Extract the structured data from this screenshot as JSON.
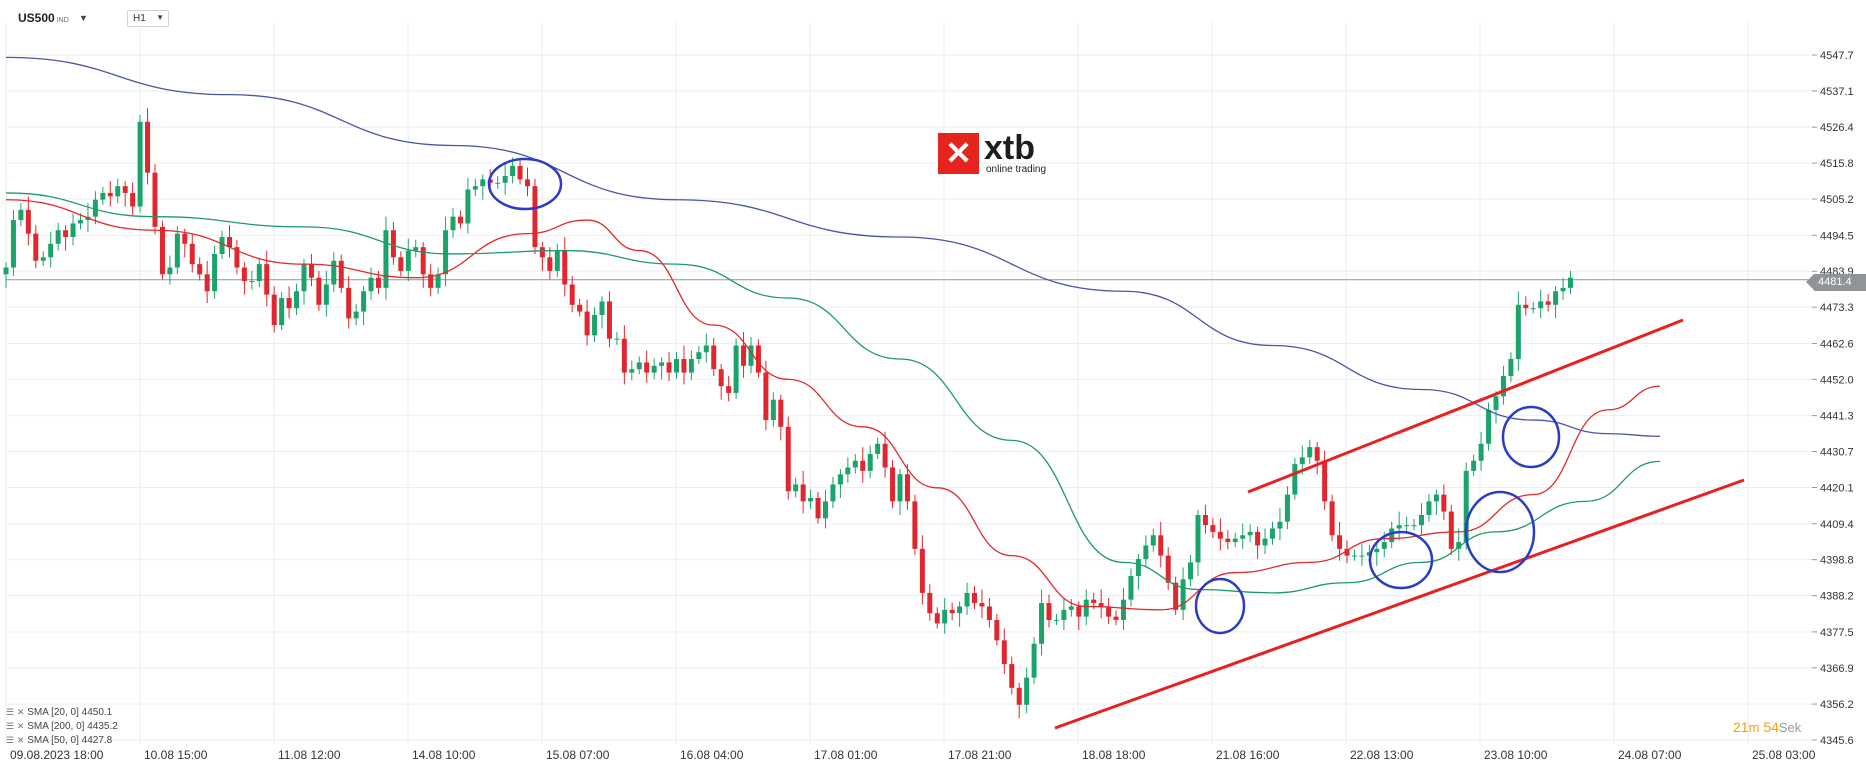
{
  "header": {
    "symbol": "US500",
    "symbol_sub": "IND",
    "timeframe": "H1"
  },
  "logo": {
    "word": "xtb",
    "tagline": "online trading"
  },
  "current_price_label": "4481.4",
  "legend": [
    {
      "label": "SMA [20, 0] 4450.1",
      "color": "#e2292b"
    },
    {
      "label": "SMA [200, 0] 4435.2",
      "color": "#4a54a8"
    },
    {
      "label": "SMA [50, 0] 4427.8",
      "color": "#1d9a66"
    }
  ],
  "timer": {
    "minutes": "21",
    "min_unit": "m",
    "seconds": "54",
    "sec_unit": "Sek"
  },
  "colors": {
    "bull": "#1aa36a",
    "bear": "#e0262e",
    "sma20": "#e2292b",
    "sma50": "#1d9a66",
    "sma200": "#4a54a8",
    "channel": "#e8201f",
    "marker": "#2b3cc4",
    "grid": "#eceef1"
  },
  "chart_data": {
    "type": "candlestick",
    "symbol": "US500",
    "timeframe": "H1",
    "ylim": [
      4341,
      4554
    ],
    "y_ticks": [
      "4547.7",
      "4537.1",
      "4526.4",
      "4515.8",
      "4505.2",
      "4494.5",
      "4483.9",
      "4473.3",
      "4462.6",
      "4452.0",
      "4441.3",
      "4430.7",
      "4420.1",
      "4409.4",
      "4398.8",
      "4388.2",
      "4377.5",
      "4366.9",
      "4356.2",
      "4345.6"
    ],
    "x_ticks": [
      "09.08.2023 18:00",
      "10.08 15:00",
      "11.08 12:00",
      "14.08 10:00",
      "15.08 07:00",
      "16.08 04:00",
      "17.08 01:00",
      "17.08 21:00",
      "18.08 18:00",
      "21.08 16:00",
      "22.08 13:00",
      "23.08 10:00",
      "24.08 07:00",
      "25.08 03:00"
    ],
    "current_price": 4481.4,
    "closes": [
      4485,
      4499,
      4502,
      4495,
      4487,
      4488,
      4492,
      4496,
      4494,
      4498,
      4499,
      4500,
      4505,
      4507,
      4506,
      4509,
      4507,
      4503,
      4528,
      4513,
      4497,
      4483,
      4485,
      4495,
      4492,
      4486,
      4483,
      4478,
      4489,
      4494,
      4491,
      4485,
      4481,
      4481,
      4486,
      4477,
      4468,
      4476,
      4473,
      4478,
      4486,
      4482,
      4474,
      4480,
      4487,
      4479,
      4470,
      4472,
      4478,
      4482,
      4479,
      4496,
      4488,
      4484,
      4490,
      4491,
      4483,
      4479,
      4483,
      4496,
      4500,
      4498,
      4508,
      4509,
      4511,
      4510,
      4510,
      4512,
      4515,
      4511,
      4509,
      4491,
      4488,
      4484,
      4490,
      4480,
      4474,
      4472,
      4465,
      4471,
      4475,
      4464,
      4464,
      4454,
      4455,
      4457,
      4454,
      4456,
      4457,
      4454,
      4458,
      4454,
      4458,
      4460,
      4462,
      4455,
      4450,
      4448,
      4462,
      4456,
      4462,
      4454,
      4440,
      4446,
      4438,
      4419,
      4421,
      4416,
      4417,
      4411,
      4416,
      4421,
      4424,
      4426,
      4428,
      4425,
      4430,
      4433,
      4426,
      4416,
      4424,
      4416,
      4402,
      4389,
      4383,
      4380,
      4384,
      4383,
      4385,
      4389,
      4386,
      4385,
      4381,
      4375,
      4368,
      4361,
      4356,
      4364,
      4374,
      4386,
      4381,
      4381,
      4384,
      4385,
      4382,
      4387,
      4386,
      4385,
      4382,
      4381,
      4387,
      4394,
      4399,
      4403,
      4406,
      4400,
      4392,
      4384,
      4393,
      4398,
      4412,
      4409,
      4407,
      4405,
      4404,
      4405,
      4406,
      4407,
      4403,
      4405,
      4408,
      4410,
      4418,
      4427,
      4429,
      4432,
      4428,
      4416,
      4406,
      4402,
      4400,
      4400,
      4400,
      4401,
      4402,
      4404,
      4408,
      4409,
      4409,
      4409,
      4412,
      4416,
      4418,
      4413,
      4402,
      4404,
      4425,
      4428,
      4433,
      4443,
      4447,
      4453,
      4458,
      4474,
      4473,
      4473,
      4475,
      4474,
      4478,
      4479,
      4482
    ],
    "series": [
      {
        "name": "SMA [20, 0] 4450.1",
        "values": [
          [
            0,
            4505
          ],
          [
            20,
            4496
          ],
          [
            40,
            4486
          ],
          [
            55,
            4482
          ],
          [
            70,
            4495
          ],
          [
            78,
            4499
          ],
          [
            85,
            4490
          ],
          [
            95,
            4468
          ],
          [
            105,
            4452
          ],
          [
            115,
            4438
          ],
          [
            125,
            4420
          ],
          [
            135,
            4400
          ],
          [
            145,
            4385
          ],
          [
            155,
            4384
          ],
          [
            165,
            4395
          ],
          [
            175,
            4398
          ],
          [
            185,
            4405
          ],
          [
            195,
            4407
          ],
          [
            205,
            4418
          ],
          [
            215,
            4443
          ],
          [
            222,
            4450
          ]
        ]
      },
      {
        "name": "SMA [200, 0] 4435.2",
        "values": [
          [
            0,
            4547
          ],
          [
            30,
            4536
          ],
          [
            60,
            4521
          ],
          [
            90,
            4505
          ],
          [
            120,
            4494
          ],
          [
            150,
            4478
          ],
          [
            170,
            4462
          ],
          [
            190,
            4449
          ],
          [
            205,
            4440
          ],
          [
            215,
            4436
          ],
          [
            222,
            4435.2
          ]
        ]
      },
      {
        "name": "SMA [50, 0] 4427.8",
        "values": [
          [
            0,
            4507
          ],
          [
            20,
            4500
          ],
          [
            40,
            4497
          ],
          [
            60,
            4489
          ],
          [
            75,
            4490
          ],
          [
            90,
            4486
          ],
          [
            105,
            4476
          ],
          [
            120,
            4458
          ],
          [
            135,
            4434
          ],
          [
            150,
            4398
          ],
          [
            160,
            4390
          ],
          [
            170,
            4389
          ],
          [
            180,
            4392
          ],
          [
            190,
            4398
          ],
          [
            200,
            4407
          ],
          [
            212,
            4416
          ],
          [
            222,
            4427.8
          ]
        ]
      }
    ]
  }
}
